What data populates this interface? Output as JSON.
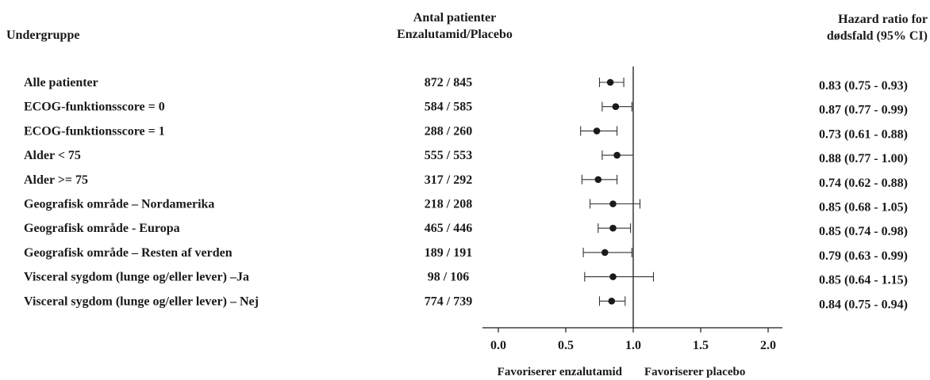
{
  "headers": {
    "subgroup": "Undergruppe",
    "patients_line1": "Antal patienter",
    "patients_line2": "Enzalutamid/Placebo",
    "hr_line1": "Hazard ratio for",
    "hr_line2": "dødsfald (95% CI)"
  },
  "chart_data": {
    "type": "forest",
    "title": "",
    "xlabel": "",
    "xlim": [
      0.0,
      2.0
    ],
    "x_ticks": [
      "0.0",
      "0.5",
      "1.0",
      "1.5",
      "2.0"
    ],
    "reference_line": 1.0,
    "favors_left": "Favoriserer enzalutamid",
    "favors_right": "Favoriserer placebo",
    "grid": false,
    "rows": [
      {
        "subgroup": "Alle patienter",
        "n": "872 / 845",
        "hr": 0.83,
        "lo": 0.75,
        "hi": 0.93,
        "ci_text": "0.83 (0.75 - 0.93)"
      },
      {
        "subgroup": "ECOG-funktionsscore = 0",
        "n": "584 / 585",
        "hr": 0.87,
        "lo": 0.77,
        "hi": 0.99,
        "ci_text": "0.87 (0.77 - 0.99)"
      },
      {
        "subgroup": "ECOG-funktionsscore = 1",
        "n": "288 / 260",
        "hr": 0.73,
        "lo": 0.61,
        "hi": 0.88,
        "ci_text": "0.73 (0.61 - 0.88)"
      },
      {
        "subgroup": "Alder < 75",
        "n": "555 / 553",
        "hr": 0.88,
        "lo": 0.77,
        "hi": 1.0,
        "ci_text": "0.88 (0.77 - 1.00)"
      },
      {
        "subgroup": "Alder >= 75",
        "n": "317 / 292",
        "hr": 0.74,
        "lo": 0.62,
        "hi": 0.88,
        "ci_text": "0.74 (0.62 - 0.88)"
      },
      {
        "subgroup": "Geografisk område – Nordamerika",
        "n": "218 / 208",
        "hr": 0.85,
        "lo": 0.68,
        "hi": 1.05,
        "ci_text": "0.85 (0.68 - 1.05)"
      },
      {
        "subgroup": "Geografisk område - Europa",
        "n": "465 / 446",
        "hr": 0.85,
        "lo": 0.74,
        "hi": 0.98,
        "ci_text": "0.85 (0.74 - 0.98)"
      },
      {
        "subgroup": "Geografisk område – Resten af verden",
        "n": "189 / 191",
        "hr": 0.79,
        "lo": 0.63,
        "hi": 0.99,
        "ci_text": "0.79 (0.63 - 0.99)"
      },
      {
        "subgroup": "Visceral sygdom (lunge og/eller lever) –Ja",
        "n": "98 / 106",
        "hr": 0.85,
        "lo": 0.64,
        "hi": 1.15,
        "ci_text": "0.85 (0.64 - 1.15)"
      },
      {
        "subgroup": "Visceral sygdom (lunge og/eller lever) – Nej",
        "n": "774 / 739",
        "hr": 0.84,
        "lo": 0.75,
        "hi": 0.94,
        "ci_text": "0.84 (0.75 - 0.94)"
      }
    ]
  }
}
